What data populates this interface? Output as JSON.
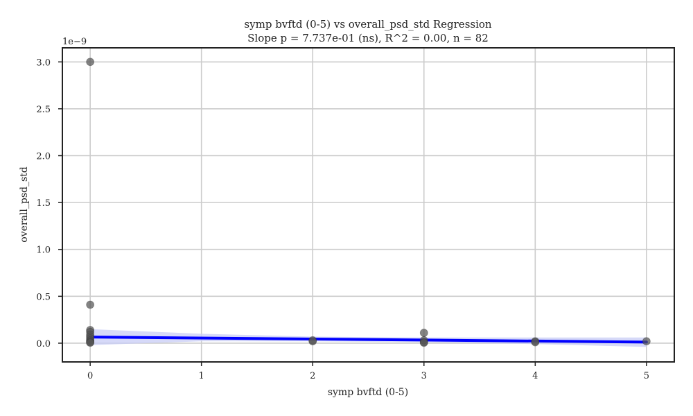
{
  "chart_data": {
    "type": "scatter",
    "title": "symp bvftd (0-5) vs overall_psd_std Regression",
    "subtitle": "Slope p = 7.737e-01 (ns), R^2 = 0.00, n = 82",
    "xlabel": "symp bvftd (0-5)",
    "ylabel": "overall_psd_std",
    "y_scale_label": "1e−9",
    "xlim": [
      -0.25,
      5.25
    ],
    "ylim": [
      -0.2,
      3.15
    ],
    "x_ticks": [
      0,
      1,
      2,
      3,
      4,
      5
    ],
    "x_tick_labels": [
      "0",
      "1",
      "2",
      "3",
      "4",
      "5"
    ],
    "y_ticks": [
      0.0,
      0.5,
      1.0,
      1.5,
      2.0,
      2.5,
      3.0
    ],
    "y_tick_labels": [
      "0.0",
      "0.5",
      "1.0",
      "1.5",
      "2.0",
      "2.5",
      "3.0"
    ],
    "grid": true,
    "points": [
      {
        "x": 0,
        "y": 3.0
      },
      {
        "x": 0,
        "y": 0.41
      },
      {
        "x": 0,
        "y": 0.14
      },
      {
        "x": 0,
        "y": 0.12
      },
      {
        "x": 0,
        "y": 0.09
      },
      {
        "x": 0,
        "y": 0.07
      },
      {
        "x": 0,
        "y": 0.05
      },
      {
        "x": 0,
        "y": 0.03
      },
      {
        "x": 0,
        "y": 0.02
      },
      {
        "x": 0,
        "y": 0.01
      },
      {
        "x": 0,
        "y": 0.005
      },
      {
        "x": 2,
        "y": 0.03
      },
      {
        "x": 2,
        "y": 0.02
      },
      {
        "x": 3,
        "y": 0.11
      },
      {
        "x": 3,
        "y": 0.03
      },
      {
        "x": 3,
        "y": 0.01
      },
      {
        "x": 3,
        "y": 0.005
      },
      {
        "x": 4,
        "y": 0.02
      },
      {
        "x": 4,
        "y": 0.01
      },
      {
        "x": 5,
        "y": 0.02
      }
    ],
    "regression_line": {
      "x": [
        0,
        5
      ],
      "y": [
        0.065,
        0.012
      ]
    },
    "confidence_band": {
      "x": [
        0,
        1,
        2,
        3,
        4,
        5
      ],
      "upper": [
        0.15,
        0.1,
        0.07,
        0.06,
        0.06,
        0.06
      ],
      "lower": [
        -0.02,
        0.02,
        0.02,
        0.01,
        -0.01,
        -0.04
      ]
    },
    "colors": {
      "points": "#555555",
      "regression_line": "#0000ff",
      "confidence_band": "#c8ccf5",
      "grid": "#cccccc",
      "axes": "#222222"
    }
  }
}
